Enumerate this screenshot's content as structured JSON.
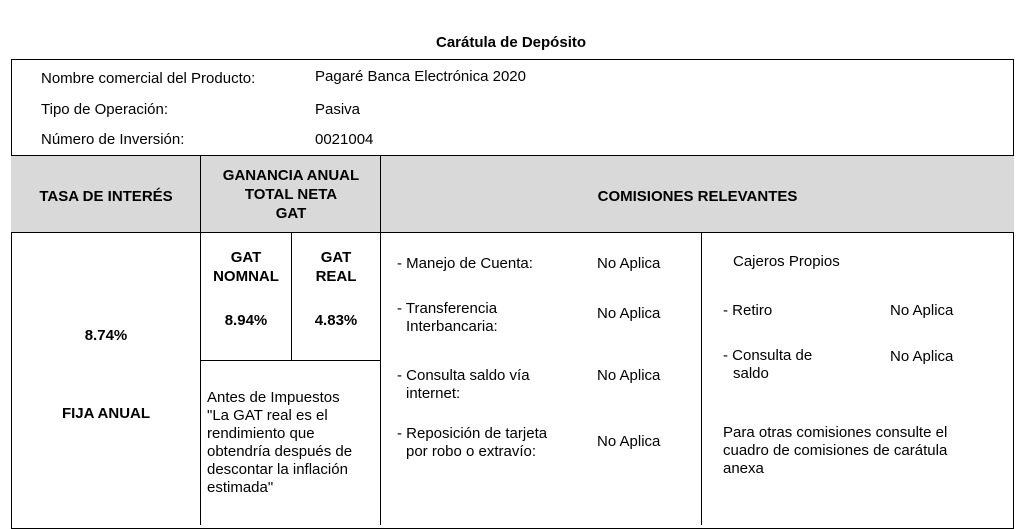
{
  "title": "Carátula de Depósito",
  "info": {
    "product_label": "Nombre comercial del Producto:",
    "product_value": "Pagaré Banca Electrónica 2020",
    "operation_label": "Tipo de Operación:",
    "operation_value": "Pasiva",
    "investment_label": "Número de Inversión:",
    "investment_value": "0021004"
  },
  "headers": {
    "interest_rate": "TASA DE INTERÉS",
    "gat_line1": "GANANCIA ANUAL",
    "gat_line2": "TOTAL NETA",
    "gat_line3": "GAT",
    "commissions": "COMISIONES RELEVANTES"
  },
  "rate": {
    "value": "8.74%",
    "type": "FIJA ANUAL"
  },
  "gat": {
    "nominal_line1": "GAT",
    "nominal_line2": "NOMNAL",
    "real_line1": "GAT",
    "real_line2": "REAL",
    "nominal_value": "8.94%",
    "real_value": "4.83%",
    "note_line1": "Antes de Impuestos",
    "note_line2": "\"La GAT real es el",
    "note_line3": "rendimiento que",
    "note_line4": "obtendría después de",
    "note_line5": "descontar la inflación",
    "note_line6": "estimada\""
  },
  "commissions_left": [
    {
      "label_line1": "- Manejo de Cuenta:",
      "label_line2": "",
      "value": "No Aplica"
    },
    {
      "label_line1": "- Transferencia",
      "label_line2": "Interbancaria:",
      "value": "No Aplica"
    },
    {
      "label_line1": "- Consulta saldo vía",
      "label_line2": "internet:",
      "value": "No Aplica"
    },
    {
      "label_line1": "- Reposición de tarjeta",
      "label_line2": "por robo o extravío:",
      "value": "No Aplica"
    }
  ],
  "commissions_right": {
    "heading": "Cajeros Propios",
    "items": [
      {
        "label_line1": "- Retiro",
        "label_line2": "",
        "value": "No Aplica"
      },
      {
        "label_line1": "- Consulta de",
        "label_line2": "saldo",
        "value": "No Aplica"
      }
    ],
    "note_line1": "Para otras comisiones consulte el",
    "note_line2": "cuadro de comisiones de carátula",
    "note_line3": "anexa"
  }
}
